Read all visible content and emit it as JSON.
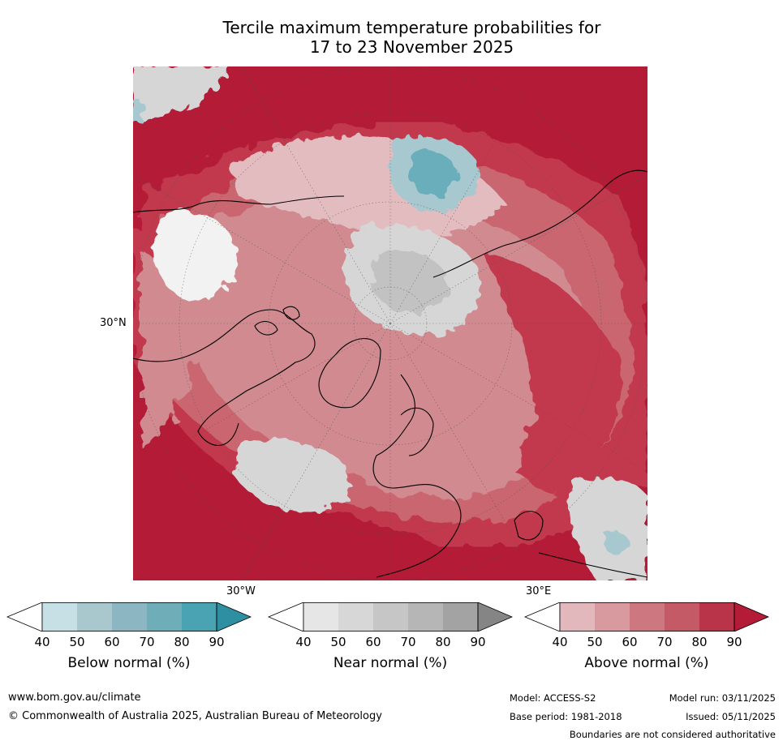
{
  "title": {
    "line1": "Tercile maximum temperature probabilities for",
    "line2": "17 to 23 November 2025"
  },
  "map": {
    "projection": "north polar stereographic",
    "lat_label": "30°N",
    "lon_labels": [
      "30°W",
      "30°E"
    ],
    "colors": {
      "above_90": "#b31b37",
      "above_80": "#c2394d",
      "above_70": "#c9666f",
      "above_60": "#d08a90",
      "above_50": "#d89ea4",
      "above_40": "#e3bcc0",
      "near": "#c8c8c8",
      "near_high": "#a5a5a5",
      "below": "#a7c8cf",
      "below_high": "#6aaebb",
      "coast": "#000000",
      "border": "#808080",
      "grid": "#555555"
    }
  },
  "colorbars": [
    {
      "label": "Below normal (%)",
      "ticks": [
        "40",
        "50",
        "60",
        "70",
        "80",
        "90"
      ],
      "colors": [
        "#ffffff",
        "#c7e0e5",
        "#a8c8ce",
        "#8cb6c1",
        "#6fadb9",
        "#4aa3b2",
        "#2e8fa2"
      ]
    },
    {
      "label": "Near normal (%)",
      "ticks": [
        "40",
        "50",
        "60",
        "70",
        "80",
        "90"
      ],
      "colors": [
        "#ffffff",
        "#e6e6e6",
        "#d7d7d7",
        "#c6c6c6",
        "#b6b6b6",
        "#a3a3a3",
        "#858585"
      ]
    },
    {
      "label": "Above normal (%)",
      "ticks": [
        "40",
        "50",
        "60",
        "70",
        "80",
        "90"
      ],
      "colors": [
        "#ffffff",
        "#e3b8bd",
        "#d8999f",
        "#cd7880",
        "#c45a66",
        "#b93349",
        "#b31b37"
      ]
    }
  ],
  "footer": {
    "website": "www.bom.gov.au/climate",
    "copyright": "© Commonwealth of Australia 2025, Australian Bureau of Meteorology",
    "model": "Model: ACCESS-S2",
    "base_period": "Base period: 1981-2018",
    "model_run": "Model run: 03/11/2025",
    "issued": "Issued: 05/11/2025",
    "disclaimer": "Boundaries are not considered authoritative"
  }
}
